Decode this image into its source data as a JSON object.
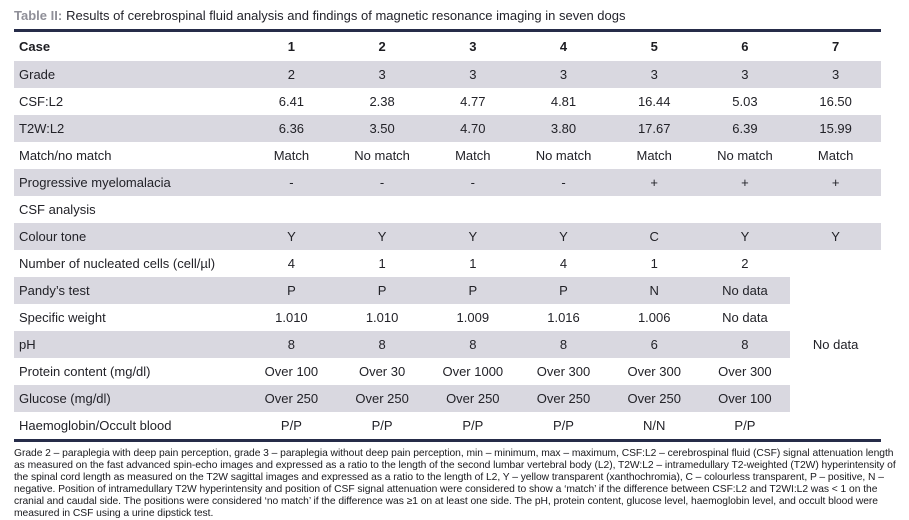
{
  "title": {
    "label": "Table II:",
    "text": "Results of cerebrospinal fluid analysis and findings of magnetic resonance imaging in seven dogs"
  },
  "table": {
    "header": {
      "label": "Case",
      "columns": [
        "1",
        "2",
        "3",
        "4",
        "5",
        "6",
        "7"
      ]
    },
    "rows": [
      {
        "label": "Grade",
        "shaded": true,
        "values": [
          "2",
          "3",
          "3",
          "3",
          "3",
          "3",
          "3"
        ]
      },
      {
        "label": "CSF:L2",
        "shaded": false,
        "values": [
          "6.41",
          "2.38",
          "4.77",
          "4.81",
          "16.44",
          "5.03",
          "16.50"
        ]
      },
      {
        "label": "T2W:L2",
        "shaded": true,
        "values": [
          "6.36",
          "3.50",
          "4.70",
          "3.80",
          "17.67",
          "6.39",
          "15.99"
        ]
      },
      {
        "label": "Match/no match",
        "shaded": false,
        "values": [
          "Match",
          "No match",
          "Match",
          "No match",
          "Match",
          "No match",
          "Match"
        ]
      },
      {
        "label": "Progressive myelomalacia",
        "shaded": true,
        "values": [
          "-",
          "-",
          "-",
          "-",
          "+",
          "+",
          "+"
        ]
      },
      {
        "label": "CSF analysis",
        "section": true
      },
      {
        "label": "Colour tone",
        "shaded": true,
        "values": [
          "Y",
          "Y",
          "Y",
          "Y",
          "C",
          "Y",
          "Y"
        ]
      },
      {
        "label": "Number of nucleated cells (cell/µl)",
        "shaded": false,
        "merge_start": true,
        "values": [
          "4",
          "1",
          "1",
          "4",
          "1",
          "2"
        ]
      },
      {
        "label": "Pandy’s test",
        "shaded": true,
        "values": [
          "P",
          "P",
          "P",
          "P",
          "N",
          "No data"
        ]
      },
      {
        "label": "Specific weight",
        "shaded": false,
        "values": [
          "1.010",
          "1.010",
          "1.009",
          "1.016",
          "1.006",
          "No data"
        ]
      },
      {
        "label": "pH",
        "shaded": true,
        "values": [
          "8",
          "8",
          "8",
          "8",
          "6",
          "8"
        ]
      },
      {
        "label": "Protein content (mg/dl)",
        "shaded": false,
        "values": [
          "Over 100",
          "Over 30",
          "Over 1000",
          "Over 300",
          "Over 300",
          "Over 300"
        ]
      },
      {
        "label": "Glucose (mg/dl)",
        "shaded": true,
        "values": [
          "Over 250",
          "Over 250",
          "Over 250",
          "Over 250",
          "Over 250",
          "Over 100"
        ]
      },
      {
        "label": "Haemoglobin/Occult blood",
        "shaded": false,
        "values": [
          "P/P",
          "P/P",
          "P/P",
          "P/P",
          "N/N",
          "P/P"
        ]
      }
    ],
    "merged_cell": {
      "text": "No data",
      "rowspan": 7
    }
  },
  "footnote": "Grade 2 – paraplegia with deep pain perception, grade 3 – paraplegia without deep pain perception, min – minimum, max – maximum, CSF:L2 – cerebrospinal fluid (CSF) signal attenuation length as measured on the fast advanced spin-echo images and expressed as a ratio to the length of the second lumbar vertebral body (L2), T2W:L2 – intramedullary T2-weighted (T2W) hyperintensity of the spinal cord length as measured on the T2W sagittal images and expressed as a ratio to the length of L2, Y – yellow transparent (xanthochromia), C – colourless transparent, P – positive, N – negative. Position of intramedullary T2W hyperintensity and position of CSF signal attenuation were considered to show a ‘match’ if the difference between CSF:L2 and T2WI:L2 was < 1 on the cranial and caudal side. The positions were considered ‘no match’ if the difference was ≥1 on at least one side. The pH, protein content, glucose level, haemoglobin level, and occult blood were measured in CSF using a urine dipstick test."
}
